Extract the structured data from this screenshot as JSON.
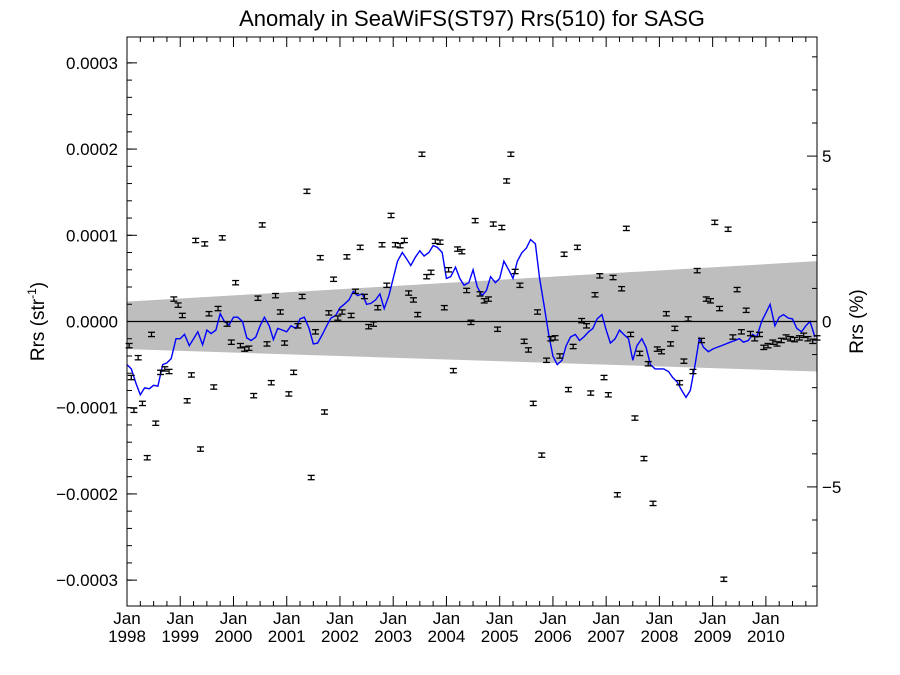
{
  "chart_data": {
    "type": "scatter",
    "title": "Anomaly in SeaWiFS(ST97) Rrs(510) for SASG",
    "ylabel_left": {
      "text": "Rrs (str",
      "superscript": "-1",
      "suffix": ")"
    },
    "ylabel_right": "Rrs (%)",
    "xlim": [
      1998.0,
      2010.96
    ],
    "ylim": [
      -0.00033,
      0.00033
    ],
    "right_ylim_percent": [
      -8.6,
      8.6
    ],
    "grid": false,
    "colors": {
      "points": "#000000",
      "line": "#0000ff",
      "band": "#bebebe",
      "zero_line": "#000000"
    },
    "x_ticks": [
      {
        "value": 1998,
        "label": "Jan\n1998"
      },
      {
        "value": 1999,
        "label": "Jan\n1999"
      },
      {
        "value": 2000,
        "label": "Jan\n2000"
      },
      {
        "value": 2001,
        "label": "Jan\n2001"
      },
      {
        "value": 2002,
        "label": "Jan\n2002"
      },
      {
        "value": 2003,
        "label": "Jan\n2003"
      },
      {
        "value": 2004,
        "label": "Jan\n2004"
      },
      {
        "value": 2005,
        "label": "Jan\n2005"
      },
      {
        "value": 2006,
        "label": "Jan\n2006"
      },
      {
        "value": 2007,
        "label": "Jan\n2007"
      },
      {
        "value": 2008,
        "label": "Jan\n2008"
      },
      {
        "value": 2009,
        "label": "Jan\n2009"
      },
      {
        "value": 2010,
        "label": "Jan\n2010"
      }
    ],
    "y_ticks_left": [
      {
        "value": 0.0003,
        "label": "0.0003"
      },
      {
        "value": 0.0002,
        "label": "0.0002"
      },
      {
        "value": 0.0001,
        "label": "0.0001"
      },
      {
        "value": 0.0,
        "label": "0.0000"
      },
      {
        "value": -0.0001,
        "label": "−0.0001"
      },
      {
        "value": -0.0002,
        "label": "−0.0002"
      },
      {
        "value": -0.0003,
        "label": "−0.0003"
      }
    ],
    "y_ticks_right": [
      {
        "value": 5,
        "label": "5"
      },
      {
        "value": 0,
        "label": "0"
      },
      {
        "value": -5,
        "label": "−5"
      }
    ],
    "uncertainty_band": {
      "x": [
        1998.0,
        2010.96
      ],
      "upper": [
        2.3e-05,
        7e-05
      ],
      "lower": [
        -3.2e-05,
        -5.8e-05
      ]
    },
    "series": [
      {
        "type": "scatter_errorbar",
        "x": [
          1998.04,
          1998.08,
          1998.13,
          1998.21,
          1998.29,
          1998.38,
          1998.46,
          1998.54,
          1998.63,
          1998.71,
          1998.79,
          1998.88,
          1998.96,
          1999.04,
          1999.13,
          1999.21,
          1999.29,
          1999.38,
          1999.46,
          1999.54,
          1999.63,
          1999.71,
          1999.79,
          1999.88,
          1999.96,
          2000.04,
          2000.13,
          2000.21,
          2000.29,
          2000.38,
          2000.46,
          2000.54,
          2000.63,
          2000.71,
          2000.79,
          2000.88,
          2000.96,
          2001.04,
          2001.13,
          2001.21,
          2001.29,
          2001.38,
          2001.46,
          2001.54,
          2001.63,
          2001.71,
          2001.79,
          2001.88,
          2001.96,
          2002.04,
          2002.13,
          2002.21,
          2002.29,
          2002.38,
          2002.46,
          2002.54,
          2002.63,
          2002.71,
          2002.79,
          2002.88,
          2002.96,
          2003.04,
          2003.13,
          2003.21,
          2003.29,
          2003.38,
          2003.46,
          2003.54,
          2003.63,
          2003.71,
          2003.79,
          2003.88,
          2003.96,
          2004.04,
          2004.13,
          2004.21,
          2004.29,
          2004.38,
          2004.46,
          2004.54,
          2004.63,
          2004.71,
          2004.79,
          2004.88,
          2004.96,
          2005.04,
          2005.13,
          2005.21,
          2005.29,
          2005.38,
          2005.46,
          2005.54,
          2005.63,
          2005.71,
          2005.79,
          2005.88,
          2005.96,
          2006.04,
          2006.13,
          2006.21,
          2006.29,
          2006.38,
          2006.46,
          2006.54,
          2006.63,
          2006.71,
          2006.79,
          2006.88,
          2006.96,
          2007.04,
          2007.13,
          2007.21,
          2007.29,
          2007.38,
          2007.46,
          2007.54,
          2007.63,
          2007.71,
          2007.79,
          2007.88,
          2007.96,
          2008.04,
          2008.13,
          2008.21,
          2008.29,
          2008.38,
          2008.46,
          2008.54,
          2008.63,
          2008.71,
          2008.79,
          2008.88,
          2008.96,
          2009.04,
          2009.13,
          2009.21,
          2009.29,
          2009.38,
          2009.46,
          2009.54,
          2009.63,
          2009.71,
          2009.79,
          2009.88,
          2009.96,
          2010.04,
          2010.13,
          2010.21,
          2010.29,
          2010.38,
          2010.46,
          2010.54,
          2010.63,
          2010.71,
          2010.79,
          2010.88,
          2010.96
        ],
        "y": [
          -2.8e-05,
          -6.5e-05,
          -0.000103,
          -4.2e-05,
          -9.5e-05,
          -0.000158,
          -1.5e-05,
          -0.000118,
          -5.9e-05,
          -5.5e-05,
          -5.8e-05,
          2.6e-05,
          1.9e-05,
          7e-06,
          -9.2e-05,
          -6.2e-05,
          9.4e-05,
          -0.000148,
          9e-05,
          9e-06,
          -7.6e-05,
          1.5e-05,
          9.7e-05,
          -3e-06,
          -2.4e-05,
          4.5e-05,
          -2.8e-05,
          -3.2e-05,
          -3.1e-05,
          -8.6e-05,
          2.7e-05,
          0.000112,
          -2.6e-05,
          -7.1e-05,
          3e-05,
          1.1e-05,
          -2.5e-05,
          -8.4e-05,
          -5.9e-05,
          -5e-06,
          2.9e-05,
          0.000151,
          -0.000181,
          -1.2e-05,
          7.4e-05,
          -0.000105,
          1e-05,
          4.9e-05,
          4e-06,
          1.1e-05,
          7.5e-05,
          7e-06,
          3.5e-05,
          8.6e-05,
          2.9e-05,
          -6e-06,
          -3e-06,
          1.6e-05,
          8.9e-05,
          4.2e-05,
          0.000123,
          8.9e-05,
          8.8e-05,
          9.4e-05,
          3.3e-05,
          2.5e-05,
          8e-06,
          0.000194,
          5.2e-05,
          5.7e-05,
          9.3e-05,
          9.2e-05,
          1.6e-05,
          6e-05,
          -5.7e-05,
          8.4e-05,
          8.1e-05,
          3.6e-05,
          -1e-06,
          0.000117,
          3.2e-05,
          2.4e-05,
          2.6e-05,
          0.000113,
          -9e-06,
          0.000109,
          0.000163,
          0.000194,
          5.8e-05,
          4.2e-05,
          -2.3e-05,
          -3.3e-05,
          -9.5e-05,
          1.1e-05,
          -0.000155,
          -4.5e-05,
          -2e-05,
          -1.9e-05,
          -4e-05,
          7.8e-05,
          -7.9e-05,
          -2.9e-05,
          8.6e-05,
          1e-06,
          -5e-06,
          -8.3e-05,
          3.1e-05,
          5.3e-05,
          -6.5e-05,
          -8.5e-05,
          5.1e-05,
          -0.000201,
          3.8e-05,
          0.000108,
          -1.5e-05,
          -0.000112,
          -3.7e-05,
          -0.000159,
          -4.9e-05,
          -0.000211,
          -3.2e-05,
          -3.5e-05,
          9e-06,
          -2.6e-05,
          -8e-06,
          -7.1e-05,
          -4.6e-05,
          3e-06,
          -5.8e-05,
          5.9e-05,
          -2.2e-05,
          2.6e-05,
          2.4e-05,
          0.000115,
          1.5e-05,
          -0.000299,
          0.000107,
          -1.8e-05,
          3.7e-05,
          -1.2e-05,
          1.3e-05,
          -1.4e-05,
          -2e-05,
          -1.5e-05,
          -3e-05,
          -2.8e-05,
          -2.4e-05,
          -2.6e-05,
          -2.2e-05,
          -1.8e-05,
          -2e-05,
          -2.1e-05,
          -1.9e-05,
          -1.6e-05,
          -2e-05,
          -2.3e-05,
          -1.9e-05
        ],
        "yerr": 2.5e-06
      },
      {
        "type": "line",
        "x": [
          1998.0,
          1998.08,
          1998.17,
          1998.25,
          1998.33,
          1998.42,
          1998.5,
          1998.58,
          1998.67,
          1998.75,
          1998.83,
          1998.92,
          1999.0,
          1999.08,
          1999.17,
          1999.25,
          1999.33,
          1999.42,
          1999.5,
          1999.58,
          1999.67,
          1999.75,
          1999.83,
          1999.92,
          2000.0,
          2000.08,
          2000.17,
          2000.25,
          2000.33,
          2000.42,
          2000.5,
          2000.58,
          2000.67,
          2000.75,
          2000.83,
          2000.92,
          2001.0,
          2001.08,
          2001.17,
          2001.25,
          2001.33,
          2001.42,
          2001.5,
          2001.58,
          2001.67,
          2001.75,
          2001.83,
          2001.92,
          2002.0,
          2002.08,
          2002.17,
          2002.25,
          2002.33,
          2002.42,
          2002.5,
          2002.58,
          2002.67,
          2002.75,
          2002.83,
          2002.92,
          2003.0,
          2003.08,
          2003.17,
          2003.25,
          2003.33,
          2003.42,
          2003.5,
          2003.58,
          2003.67,
          2003.75,
          2003.83,
          2003.92,
          2004.0,
          2004.08,
          2004.17,
          2004.25,
          2004.33,
          2004.42,
          2004.5,
          2004.58,
          2004.67,
          2004.75,
          2004.83,
          2004.92,
          2005.0,
          2005.08,
          2005.17,
          2005.25,
          2005.33,
          2005.42,
          2005.5,
          2005.58,
          2005.67,
          2005.75,
          2005.83,
          2005.92,
          2006.0,
          2006.08,
          2006.17,
          2006.25,
          2006.33,
          2006.42,
          2006.5,
          2006.58,
          2006.67,
          2006.75,
          2006.83,
          2006.92,
          2007.0,
          2007.08,
          2007.17,
          2007.25,
          2007.33,
          2007.42,
          2007.5,
          2007.58,
          2007.67,
          2007.75,
          2007.83,
          2007.92,
          2008.0,
          2008.08,
          2008.17,
          2008.25,
          2008.33,
          2008.42,
          2008.5,
          2008.58,
          2008.67,
          2008.75,
          2008.83,
          2008.92,
          2009.0,
          2009.08,
          2009.17,
          2009.25,
          2009.33,
          2009.42,
          2009.5,
          2009.58,
          2009.67,
          2009.75,
          2009.83,
          2009.92,
          2010.0,
          2010.08,
          2010.17,
          2010.25,
          2010.33,
          2010.42,
          2010.5,
          2010.58,
          2010.67,
          2010.75,
          2010.83,
          2010.92
        ],
        "y": [
          -5e-05,
          -5.5e-05,
          -7.2e-05,
          -8.5e-05,
          -7.7e-05,
          -7.8e-05,
          -7.4e-05,
          -7.5e-05,
          -5e-05,
          -4.8e-05,
          -4.3e-05,
          -2e-05,
          -2e-05,
          -1.5e-05,
          -2.8e-05,
          -2e-05,
          -1.2e-05,
          -2.7e-05,
          -1e-05,
          -1.4e-05,
          -1e-05,
          9e-06,
          0.0,
          -4e-06,
          5e-06,
          5e-06,
          0.0,
          -1.9e-05,
          -2.2e-05,
          -1.8e-05,
          -5e-06,
          5e-06,
          -5e-06,
          -2.1e-05,
          -8e-06,
          -1e-05,
          -1.2e-05,
          -5e-06,
          -8e-06,
          3e-06,
          5e-06,
          -8e-06,
          -2.6e-05,
          -2.5e-05,
          -1.5e-05,
          -5e-06,
          4e-06,
          7e-06,
          1.6e-05,
          2e-05,
          2.5e-05,
          3.5e-05,
          3e-05,
          3.2e-05,
          2e-05,
          2.1e-05,
          2.5e-05,
          3.2e-05,
          1.5e-05,
          3e-05,
          5e-05,
          7e-05,
          8e-05,
          7.3e-05,
          6.5e-05,
          7.5e-05,
          8.2e-05,
          7.6e-05,
          8e-05,
          8.8e-05,
          8.6e-05,
          8e-05,
          5e-05,
          5.2e-05,
          6.3e-05,
          5e-05,
          4.2e-05,
          4.5e-05,
          6e-05,
          4e-05,
          3e-05,
          3.6e-05,
          5.2e-05,
          4.5e-05,
          5e-05,
          7e-05,
          6e-05,
          5e-05,
          7e-05,
          8e-05,
          8.5e-05,
          9.5e-05,
          9e-05,
          5e-05,
          2e-05,
          -1.5e-05,
          -4e-05,
          -5e-05,
          -4.5e-05,
          -2.8e-05,
          -1.8e-05,
          -1.5e-05,
          -2.2e-05,
          -1.8e-05,
          -1.2e-05,
          -8e-06,
          3e-06,
          8e-06,
          -1e-05,
          -2.5e-05,
          -2e-05,
          -1e-05,
          -1.5e-05,
          -2e-05,
          -4.5e-05,
          -2.8e-05,
          -2e-05,
          -3e-05,
          -5e-05,
          -5.5e-05,
          -5.5e-05,
          -5.5e-05,
          -5.8e-05,
          -6.5e-05,
          -7e-05,
          -8e-05,
          -8.8e-05,
          -8e-05,
          -5e-05,
          -2e-05,
          -3e-05,
          -3.5e-05,
          -3.2e-05,
          -3e-05,
          -2.8e-05,
          -2.6e-05,
          -2.4e-05,
          -2.2e-05,
          -2e-05,
          -2.4e-05,
          -2.2e-05,
          -1.5e-05,
          -1.8e-05,
          0.0,
          1e-05,
          2e-05,
          -5e-06,
          5e-06,
          8e-06,
          4e-06,
          3e-06,
          -8e-06,
          -1.2e-05,
          -5e-06,
          0.0,
          -1.8e-05
        ]
      }
    ]
  }
}
